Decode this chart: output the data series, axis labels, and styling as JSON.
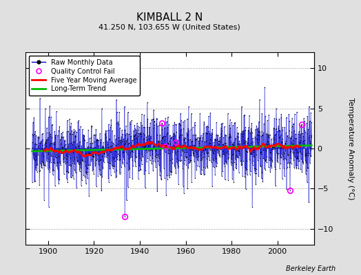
{
  "title": "KIMBALL 2 N",
  "subtitle": "41.250 N, 103.655 W (United States)",
  "ylabel": "Temperature Anomaly (°C)",
  "credit": "Berkeley Earth",
  "ylim": [
    -12,
    12
  ],
  "yticks": [
    -10,
    -5,
    0,
    5,
    10
  ],
  "year_start": 1893,
  "year_end": 2014,
  "bg_color": "#e0e0e0",
  "plot_bg_color": "#ffffff",
  "raw_color": "#0000cc",
  "moving_avg_color": "#ff0000",
  "trend_color": "#00bb00",
  "qc_color": "#ff00ff",
  "seed": 17,
  "noise_scale": 2.0,
  "xlim_start": 1890,
  "xlim_end": 2016
}
